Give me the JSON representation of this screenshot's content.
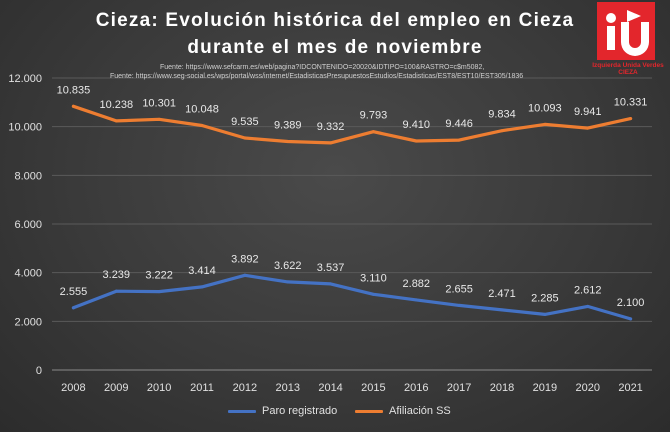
{
  "title_line1": "Cieza: Evolución histórica del empleo en Cieza",
  "title_line2": "durante el mes de noviembre",
  "source1": "Fuente: https://www.sefcarm.es/web/pagina?IDCONTENIDO=20020&IDTIPO=100&RASTRO=c$m5082,",
  "source2": "Fuente: https://www.seg-social.es/wps/portal/wss/internet/EstadisticasPresupuestosEstudios/Estadisticas/EST8/EST10/EST305/1836",
  "logo": {
    "icon": "iu-logo",
    "color": "#e3262c",
    "line1": "Izquierda Unida Verdes",
    "line2": "CIEZA"
  },
  "chart_data": {
    "type": "line",
    "title": "Cieza: Evolución histórica del empleo en Cieza durante el mes de noviembre",
    "categories": [
      "2008",
      "2009",
      "2010",
      "2011",
      "2012",
      "2013",
      "2014",
      "2015",
      "2016",
      "2017",
      "2018",
      "2019",
      "2020",
      "2021"
    ],
    "ylim": [
      0,
      12000
    ],
    "yticks": [
      0,
      2000,
      4000,
      6000,
      8000,
      10000,
      12000
    ],
    "ytick_labels": [
      "0",
      "2.000",
      "4.000",
      "6.000",
      "8.000",
      "10.000",
      "12.000"
    ],
    "grid": true,
    "legend_position": "bottom",
    "series": [
      {
        "name": "Paro registrado",
        "color": "#4472c4",
        "values": [
          2555,
          3239,
          3222,
          3414,
          3892,
          3622,
          3537,
          3110,
          2882,
          2655,
          2471,
          2285,
          2612,
          2100
        ],
        "labels": [
          "2.555",
          "3.239",
          "3.222",
          "3.414",
          "3.892",
          "3.622",
          "3.537",
          "3.110",
          "2.882",
          "2.655",
          "2.471",
          "2.285",
          "2.612",
          "2.100"
        ]
      },
      {
        "name": "Afiliación SS",
        "color": "#ed7d31",
        "values": [
          10835,
          10238,
          10301,
          10048,
          9535,
          9389,
          9332,
          9793,
          9410,
          9446,
          9834,
          10093,
          9941,
          10331
        ],
        "labels": [
          "10.835",
          "10.238",
          "10.301",
          "10.048",
          "9.535",
          "9.389",
          "9.332",
          "9.793",
          "9.410",
          "9.446",
          "9.834",
          "10.093",
          "9.941",
          "10.331"
        ]
      }
    ]
  }
}
